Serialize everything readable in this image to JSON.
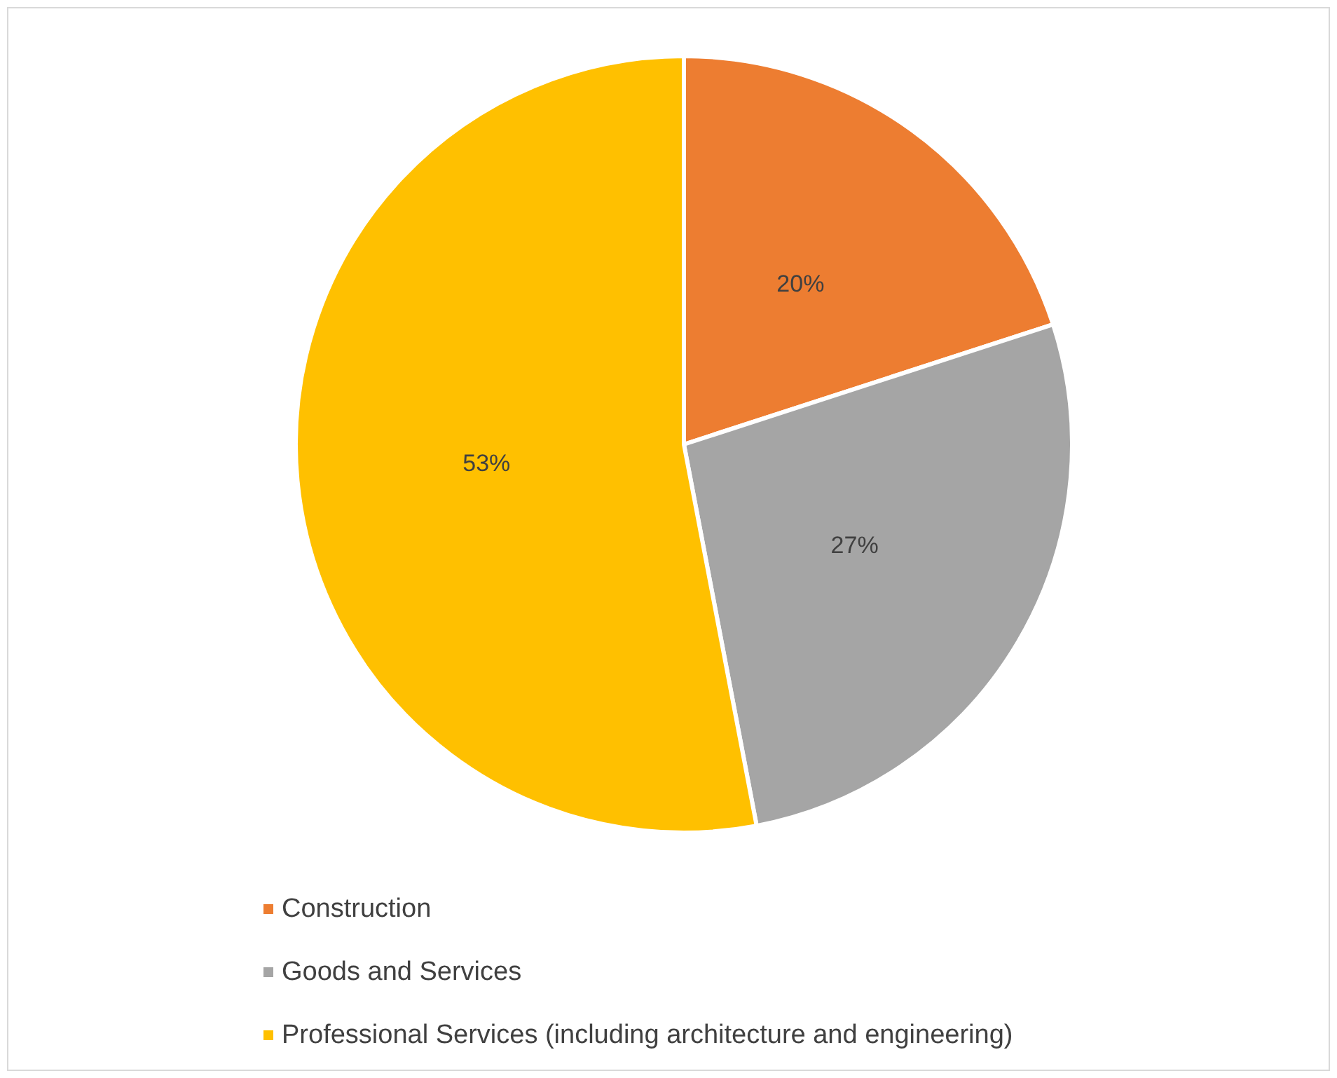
{
  "chart_data": {
    "type": "pie",
    "categories": [
      "Construction",
      "Goods and Services",
      "Professional Services (including architecture and engineering)"
    ],
    "values": [
      20,
      27,
      53
    ],
    "colors": [
      "#ed7d31",
      "#a5a5a5",
      "#ffc000"
    ],
    "value_labels": [
      "20%",
      "27%",
      "53%"
    ],
    "legend": "bottom left"
  }
}
